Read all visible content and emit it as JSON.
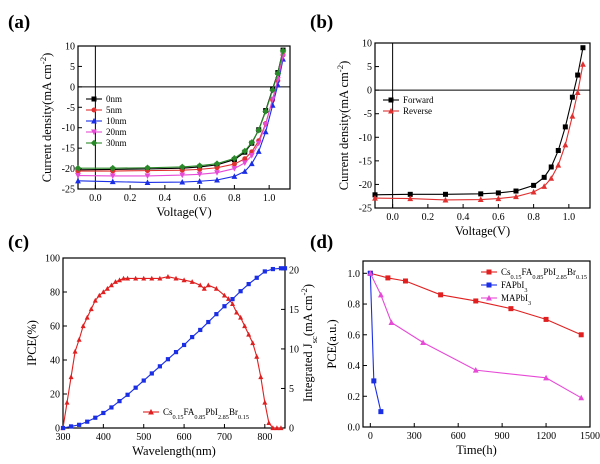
{
  "chart_data": [
    {
      "panel": "(a)",
      "type": "line",
      "xlabel": "Voltage(V)",
      "ylabel": "Current density(mA cm^-2)",
      "xlim": [
        -0.1,
        1.12
      ],
      "ylim": [
        -25,
        10
      ],
      "xticks": [
        "0.0",
        "0.2",
        "0.4",
        "0.6",
        "0.8",
        "1.0"
      ],
      "xtick_values": [
        0.0,
        0.2,
        0.4,
        0.6,
        0.8,
        1.0
      ],
      "yticks": [
        "-25",
        "-20",
        "-15",
        "-10",
        "-5",
        "0",
        "5",
        "10"
      ],
      "ytick_values": [
        -25,
        -20,
        -15,
        -10,
        -5,
        0,
        5,
        10
      ],
      "legend_position": "left-middle",
      "series": [
        {
          "name": "0nm",
          "color": "#000000",
          "marker": "square",
          "x": [
            -0.1,
            0.1,
            0.3,
            0.5,
            0.6,
            0.7,
            0.8,
            0.86,
            0.9,
            0.94,
            0.98,
            1.02,
            1.05,
            1.08
          ],
          "y": [
            -20.3,
            -20.2,
            -20.1,
            -19.9,
            -19.6,
            -19.1,
            -17.8,
            -16.0,
            -13.8,
            -10.5,
            -5.8,
            -0.5,
            3.5,
            9.0
          ]
        },
        {
          "name": "5nm",
          "color": "#e03030",
          "marker": "circle",
          "x": [
            -0.1,
            0.1,
            0.3,
            0.5,
            0.6,
            0.7,
            0.8,
            0.86,
            0.9,
            0.94,
            0.98,
            1.02,
            1.05,
            1.08
          ],
          "y": [
            -20.6,
            -20.6,
            -20.5,
            -20.4,
            -20.2,
            -19.8,
            -18.9,
            -17.6,
            -15.9,
            -13.2,
            -9.0,
            -3.2,
            1.5,
            7.8
          ]
        },
        {
          "name": "10nm",
          "color": "#1a2ee6",
          "marker": "triangle-up",
          "x": [
            -0.1,
            0.1,
            0.3,
            0.5,
            0.6,
            0.7,
            0.8,
            0.86,
            0.9,
            0.94,
            0.98,
            1.02,
            1.05,
            1.08
          ],
          "y": [
            -23.0,
            -23.2,
            -23.4,
            -23.3,
            -23.1,
            -22.8,
            -21.9,
            -20.7,
            -18.8,
            -15.8,
            -11.0,
            -4.5,
            0.5,
            6.8
          ]
        },
        {
          "name": "20nm",
          "color": "#e64ad6",
          "marker": "triangle-down",
          "x": [
            -0.1,
            0.1,
            0.3,
            0.5,
            0.6,
            0.7,
            0.8,
            0.86,
            0.9,
            0.94,
            0.98,
            1.02,
            1.05,
            1.08
          ],
          "y": [
            -21.7,
            -21.8,
            -21.8,
            -21.6,
            -21.4,
            -21.0,
            -20.0,
            -18.6,
            -16.8,
            -13.8,
            -9.2,
            -3.0,
            1.8,
            7.5
          ]
        },
        {
          "name": "30nm",
          "color": "#2a8a2a",
          "marker": "diamond",
          "x": [
            -0.1,
            0.1,
            0.3,
            0.5,
            0.6,
            0.7,
            0.8,
            0.86,
            0.9,
            0.94,
            0.98,
            1.02,
            1.05,
            1.08
          ],
          "y": [
            -19.9,
            -19.9,
            -19.8,
            -19.6,
            -19.3,
            -18.8,
            -17.5,
            -15.7,
            -13.6,
            -10.6,
            -6.0,
            -0.8,
            3.3,
            8.8
          ]
        }
      ]
    },
    {
      "panel": "(b)",
      "type": "line",
      "xlabel": "Voltage(V)",
      "ylabel": "Current density(mA cm^-2)",
      "xlim": [
        -0.1,
        1.12
      ],
      "ylim": [
        -25,
        10
      ],
      "xticks": [
        "0.0",
        "0.2",
        "0.4",
        "0.6",
        "0.8",
        "1.0"
      ],
      "xtick_values": [
        0.0,
        0.2,
        0.4,
        0.6,
        0.8,
        1.0
      ],
      "yticks": [
        "-25",
        "-20",
        "-15",
        "-10",
        "-5",
        "0",
        "5",
        "10"
      ],
      "ytick_values": [
        -25,
        -20,
        -15,
        -10,
        -5,
        0,
        5,
        10
      ],
      "legend_position": "top-left",
      "series": [
        {
          "name": "Forward",
          "color": "#000000",
          "marker": "square",
          "x": [
            -0.1,
            0.1,
            0.3,
            0.5,
            0.6,
            0.7,
            0.8,
            0.86,
            0.9,
            0.94,
            0.98,
            1.02,
            1.05,
            1.08
          ],
          "y": [
            -22.2,
            -22.1,
            -22.1,
            -22.0,
            -21.8,
            -21.4,
            -20.2,
            -18.5,
            -16.3,
            -12.8,
            -7.8,
            -1.5,
            3.2,
            9.0
          ]
        },
        {
          "name": "Reverse",
          "color": "#e03030",
          "marker": "triangle-up",
          "x": [
            -0.1,
            0.1,
            0.3,
            0.5,
            0.6,
            0.7,
            0.8,
            0.86,
            0.9,
            0.94,
            0.98,
            1.02,
            1.05,
            1.08
          ],
          "y": [
            -22.9,
            -23.0,
            -23.3,
            -23.2,
            -23.0,
            -22.6,
            -21.6,
            -20.4,
            -18.7,
            -15.9,
            -11.6,
            -5.5,
            -0.5,
            5.5
          ]
        }
      ]
    },
    {
      "panel": "(c)",
      "type": "line",
      "xlabel": "Wavelength(nm)",
      "ylabel": "IPCE(%)",
      "ylabel_right": "Integrated J_sc(mA cm^-2)",
      "xlim": [
        300,
        850
      ],
      "ylim": [
        0,
        100
      ],
      "ylim_right": [
        0,
        21.5
      ],
      "xticks": [
        "300",
        "400",
        "500",
        "600",
        "700",
        "800"
      ],
      "xtick_values": [
        300,
        400,
        500,
        600,
        700,
        800
      ],
      "yticks": [
        "0",
        "20",
        "40",
        "60",
        "80",
        "100"
      ],
      "ytick_values": [
        0,
        20,
        40,
        60,
        80,
        100
      ],
      "yticks_right": [
        "0",
        "5",
        "10",
        "15",
        "20"
      ],
      "ytick_values_right": [
        0,
        5,
        10,
        15,
        20
      ],
      "legend_position": "bottom-left",
      "series": [
        {
          "name": "Cs0.15FA0.85PbI2.85Br0.15",
          "color": "#e02020",
          "marker": "triangle-up",
          "axis": "left",
          "x": [
            300,
            310,
            320,
            330,
            340,
            350,
            360,
            370,
            380,
            390,
            400,
            410,
            420,
            430,
            440,
            450,
            460,
            480,
            500,
            520,
            540,
            560,
            580,
            600,
            620,
            640,
            650,
            660,
            680,
            700,
            710,
            720,
            730,
            740,
            750,
            760,
            770,
            780,
            790,
            800,
            810,
            820,
            830,
            840
          ],
          "y": [
            0,
            15,
            30,
            45,
            52,
            60,
            65,
            70,
            75,
            78,
            80,
            82,
            84,
            86,
            87,
            88,
            88,
            88,
            88,
            88,
            88,
            89,
            88,
            87,
            86,
            84,
            82,
            84,
            82,
            78,
            76,
            73,
            68,
            65,
            60,
            55,
            50,
            42,
            30,
            15,
            3,
            0,
            0,
            0
          ]
        },
        {
          "name": "Integrated Jsc",
          "color": "#1a2ee6",
          "marker": "square",
          "axis": "right",
          "x": [
            300,
            320,
            340,
            360,
            380,
            400,
            420,
            440,
            460,
            480,
            500,
            520,
            540,
            560,
            580,
            600,
            620,
            640,
            660,
            680,
            700,
            720,
            740,
            760,
            780,
            800,
            820,
            840,
            850
          ],
          "y": [
            0,
            0.2,
            0.4,
            0.8,
            1.3,
            1.9,
            2.6,
            3.4,
            4.2,
            5.1,
            6.0,
            6.9,
            7.8,
            8.7,
            9.6,
            10.5,
            11.5,
            12.4,
            13.4,
            14.4,
            15.4,
            16.3,
            17.3,
            18.2,
            19.0,
            19.8,
            20.1,
            20.2,
            20.2
          ]
        }
      ]
    },
    {
      "panel": "(d)",
      "type": "line",
      "xlabel": "Time(h)",
      "ylabel": "PCE(a.u.)",
      "xlim": [
        -50,
        1500
      ],
      "ylim": [
        0,
        1.08
      ],
      "xticks": [
        "0",
        "300",
        "600",
        "900",
        "1200",
        "1500"
      ],
      "xtick_values": [
        0,
        300,
        600,
        900,
        1200,
        1500
      ],
      "yticks": [
        "0.0",
        "0.2",
        "0.4",
        "0.6",
        "0.8",
        "1.0"
      ],
      "ytick_values": [
        0,
        0.2,
        0.4,
        0.6,
        0.8,
        1.0
      ],
      "legend_position": "top-right",
      "series": [
        {
          "name": "Cs0.15FA0.85PbI2.85Br0.15",
          "color": "#e02020",
          "marker": "square",
          "x": [
            0,
            120,
            240,
            480,
            720,
            960,
            1200,
            1440
          ],
          "y": [
            1.0,
            0.97,
            0.95,
            0.86,
            0.82,
            0.77,
            0.7,
            0.6
          ]
        },
        {
          "name": "FAPbI3",
          "color": "#1a2ee6",
          "marker": "square",
          "x": [
            0,
            24,
            72
          ],
          "y": [
            1.0,
            0.3,
            0.1
          ]
        },
        {
          "name": "MAPbI3",
          "color": "#e64ad6",
          "marker": "triangle-up",
          "x": [
            0,
            72,
            144,
            360,
            720,
            1200,
            1440
          ],
          "y": [
            1.0,
            0.86,
            0.68,
            0.55,
            0.37,
            0.32,
            0.19
          ]
        }
      ]
    }
  ]
}
